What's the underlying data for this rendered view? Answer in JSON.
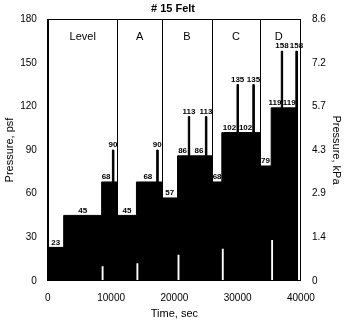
{
  "chart_data": {
    "type": "line",
    "title": "# 15 Felt",
    "x_label": "Time, sec",
    "y_label": "Pressure, psf",
    "y2_label": "Pressure, kPa",
    "x": [
      0,
      0,
      2500,
      2500,
      8500,
      8500,
      8800,
      8800,
      10200,
      10200,
      10400,
      10400,
      11000,
      11000,
      14000,
      14000,
      14300,
      14300,
      17200,
      17200,
      17400,
      17400,
      18000,
      18000,
      20500,
      20500,
      20800,
      20800,
      22200,
      22200,
      22400,
      22400,
      24900,
      24900,
      25100,
      25100,
      26000,
      26000,
      27500,
      27500,
      27800,
      27800,
      29900,
      29900,
      30100,
      30100,
      32400,
      32400,
      32600,
      32600,
      33500,
      33500,
      35300,
      35300,
      35600,
      35600,
      36900,
      36900,
      37100,
      37100,
      39200,
      39200,
      39400,
      39400,
      39500,
      39500
    ],
    "series": [
      {
        "color": "#000000",
        "values": [
          0,
          23,
          23,
          45,
          45,
          68,
          68,
          68,
          68,
          90,
          90,
          68,
          68,
          45,
          45,
          68,
          68,
          68,
          68,
          90,
          90,
          68,
          68,
          57,
          57,
          86,
          86,
          86,
          86,
          113,
          113,
          86,
          86,
          113,
          113,
          86,
          86,
          68,
          68,
          102,
          102,
          102,
          102,
          135,
          135,
          102,
          102,
          135,
          135,
          102,
          102,
          79,
          79,
          119,
          119,
          119,
          119,
          158,
          158,
          119,
          119,
          158,
          158,
          119,
          119,
          0
        ]
      },
      {
        "color": "#ffffff",
        "values": [
          0,
          0,
          0,
          0,
          0,
          10,
          10,
          0,
          0,
          0,
          0,
          0,
          0,
          0,
          0,
          12,
          12,
          0,
          0,
          0,
          0,
          0,
          0,
          0,
          0,
          18,
          18,
          0,
          0,
          0,
          0,
          0,
          0,
          0,
          0,
          0,
          0,
          0,
          0,
          22,
          22,
          0,
          0,
          0,
          0,
          0,
          0,
          0,
          0,
          0,
          0,
          0,
          0,
          28,
          28,
          0,
          0,
          0,
          0,
          0,
          0,
          0,
          0,
          0,
          0,
          0
        ]
      }
    ],
    "xlim": [
      0,
      40000
    ],
    "xticks": [
      0,
      10000,
      20000,
      30000,
      40000
    ],
    "ylim": [
      0,
      180
    ],
    "yticks": [
      0,
      30,
      60,
      90,
      120,
      150,
      180
    ],
    "y2lim": [
      0,
      8.618
    ],
    "y2ticks": [
      0,
      {
        "value": 1.436,
        "label": "1.4"
      },
      {
        "value": 2.873,
        "label": "2.9"
      },
      {
        "value": 4.309,
        "label": "4.3"
      },
      {
        "value": 5.746,
        "label": "5.7"
      },
      {
        "value": 7.182,
        "label": "7.2"
      },
      {
        "value": 8.618,
        "label": "8.6"
      }
    ],
    "grid": false,
    "level_boundaries": [
      11000,
      18000,
      26000,
      33500
    ],
    "level_labels": [
      {
        "text": "Level",
        "x": 5500,
        "y": 168
      },
      {
        "text": "A",
        "x": 14500,
        "y": 168
      },
      {
        "text": "B",
        "x": 22000,
        "y": 168
      },
      {
        "text": "C",
        "x": 29750,
        "y": 168
      },
      {
        "text": "D",
        "x": 36500,
        "y": 168
      }
    ],
    "annotations": [
      {
        "text": "23",
        "x": 1250,
        "y": 23
      },
      {
        "text": "45",
        "x": 5500,
        "y": 45
      },
      {
        "text": "68",
        "x": 9200,
        "y": 68
      },
      {
        "text": "90",
        "x": 10300,
        "y": 90
      },
      {
        "text": "45",
        "x": 12500,
        "y": 45
      },
      {
        "text": "68",
        "x": 15800,
        "y": 68
      },
      {
        "text": "90",
        "x": 17300,
        "y": 90
      },
      {
        "text": "57",
        "x": 19250,
        "y": 57
      },
      {
        "text": "86",
        "x": 21300,
        "y": 86
      },
      {
        "text": "113",
        "x": 22300,
        "y": 113
      },
      {
        "text": "86",
        "x": 23900,
        "y": 86
      },
      {
        "text": "113",
        "x": 25000,
        "y": 113
      },
      {
        "text": "68",
        "x": 26750,
        "y": 68
      },
      {
        "text": "102",
        "x": 28700,
        "y": 102
      },
      {
        "text": "135",
        "x": 30000,
        "y": 135
      },
      {
        "text": "102",
        "x": 31250,
        "y": 102
      },
      {
        "text": "135",
        "x": 32500,
        "y": 135
      },
      {
        "text": "79",
        "x": 34400,
        "y": 79
      },
      {
        "text": "119",
        "x": 35900,
        "y": 119
      },
      {
        "text": "158",
        "x": 37000,
        "y": 158
      },
      {
        "text": "119",
        "x": 38150,
        "y": 119
      },
      {
        "text": "158",
        "x": 39300,
        "y": 158
      }
    ]
  }
}
